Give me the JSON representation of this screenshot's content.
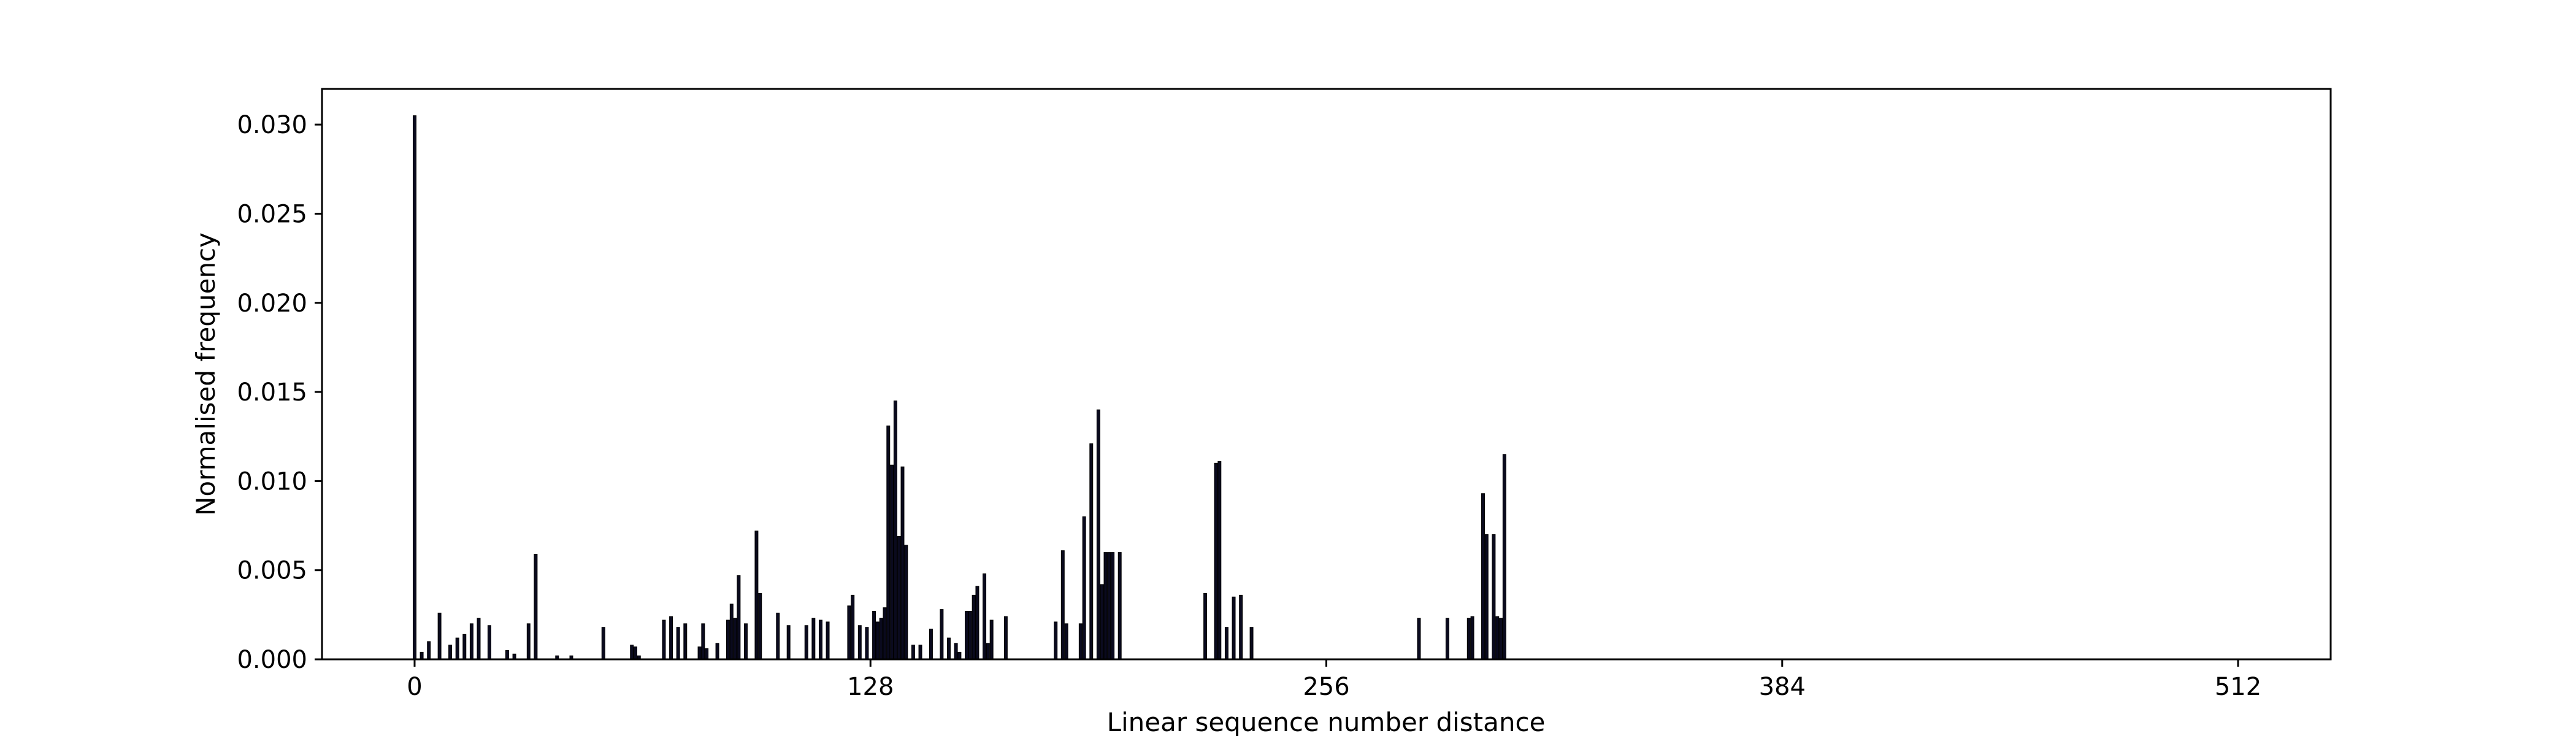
{
  "chart_data": {
    "type": "bar",
    "title": "",
    "xlabel": "Linear sequence number distance",
    "ylabel": "Normalised frequency",
    "xlim": [
      -26,
      538
    ],
    "ylim": [
      0,
      0.032
    ],
    "xticks": [
      0,
      128,
      256,
      384,
      512
    ],
    "xtick_labels": [
      "0",
      "128",
      "256",
      "384",
      "512"
    ],
    "yticks": [
      0.0,
      0.005,
      0.01,
      0.015,
      0.02,
      0.025,
      0.03
    ],
    "ytick_labels": [
      "0.000",
      "0.005",
      "0.010",
      "0.015",
      "0.020",
      "0.025",
      "0.030"
    ],
    "grid": false,
    "bar_color": "#0a0a1e",
    "x": [
      0,
      2,
      4,
      7,
      10,
      12,
      14,
      16,
      18,
      21,
      26,
      28,
      32,
      34,
      40,
      44,
      53,
      61,
      62,
      63,
      70,
      72,
      74,
      76,
      80,
      81,
      82,
      85,
      88,
      89,
      90,
      91,
      93,
      96,
      97,
      102,
      105,
      110,
      112,
      114,
      116,
      122,
      123,
      125,
      127,
      129,
      130,
      131,
      132,
      133,
      134,
      135,
      136,
      137,
      138,
      140,
      142,
      145,
      148,
      150,
      152,
      153,
      155,
      156,
      157,
      158,
      160,
      161,
      162,
      166,
      180,
      182,
      183,
      187,
      188,
      190,
      192,
      193,
      194,
      195,
      196,
      198,
      222,
      225,
      226,
      228,
      230,
      232,
      235,
      282,
      290,
      296,
      297,
      300,
      301,
      303,
      304,
      305,
      306
    ],
    "values": [
      0.0305,
      0.0004,
      0.001,
      0.0026,
      0.0008,
      0.0012,
      0.0014,
      0.002,
      0.0023,
      0.0019,
      0.0005,
      0.0003,
      0.002,
      0.0059,
      0.0002,
      0.0002,
      0.0018,
      0.0008,
      0.0007,
      0.0002,
      0.0022,
      0.0024,
      0.0018,
      0.002,
      0.0007,
      0.002,
      0.0006,
      0.0009,
      0.0022,
      0.0031,
      0.0023,
      0.0047,
      0.002,
      0.0072,
      0.0037,
      0.0026,
      0.0019,
      0.0019,
      0.0023,
      0.0022,
      0.0021,
      0.003,
      0.0036,
      0.0019,
      0.0018,
      0.0027,
      0.0021,
      0.0023,
      0.0029,
      0.0131,
      0.0109,
      0.0145,
      0.0069,
      0.0108,
      0.0064,
      0.0008,
      0.0008,
      0.0017,
      0.0028,
      0.0012,
      0.0009,
      0.0004,
      0.0027,
      0.0027,
      0.0036,
      0.0041,
      0.0048,
      0.0009,
      0.0022,
      0.0024,
      0.0021,
      0.0061,
      0.002,
      0.002,
      0.008,
      0.0121,
      0.014,
      0.0042,
      0.006,
      0.006,
      0.006,
      0.006,
      0.0037,
      0.011,
      0.0111,
      0.0018,
      0.0035,
      0.0036,
      0.0018,
      0.0023,
      0.0023,
      0.0023,
      0.0024,
      0.0093,
      0.007,
      0.007,
      0.0024,
      0.0023,
      0.0115
    ],
    "bars_note": ""
  }
}
